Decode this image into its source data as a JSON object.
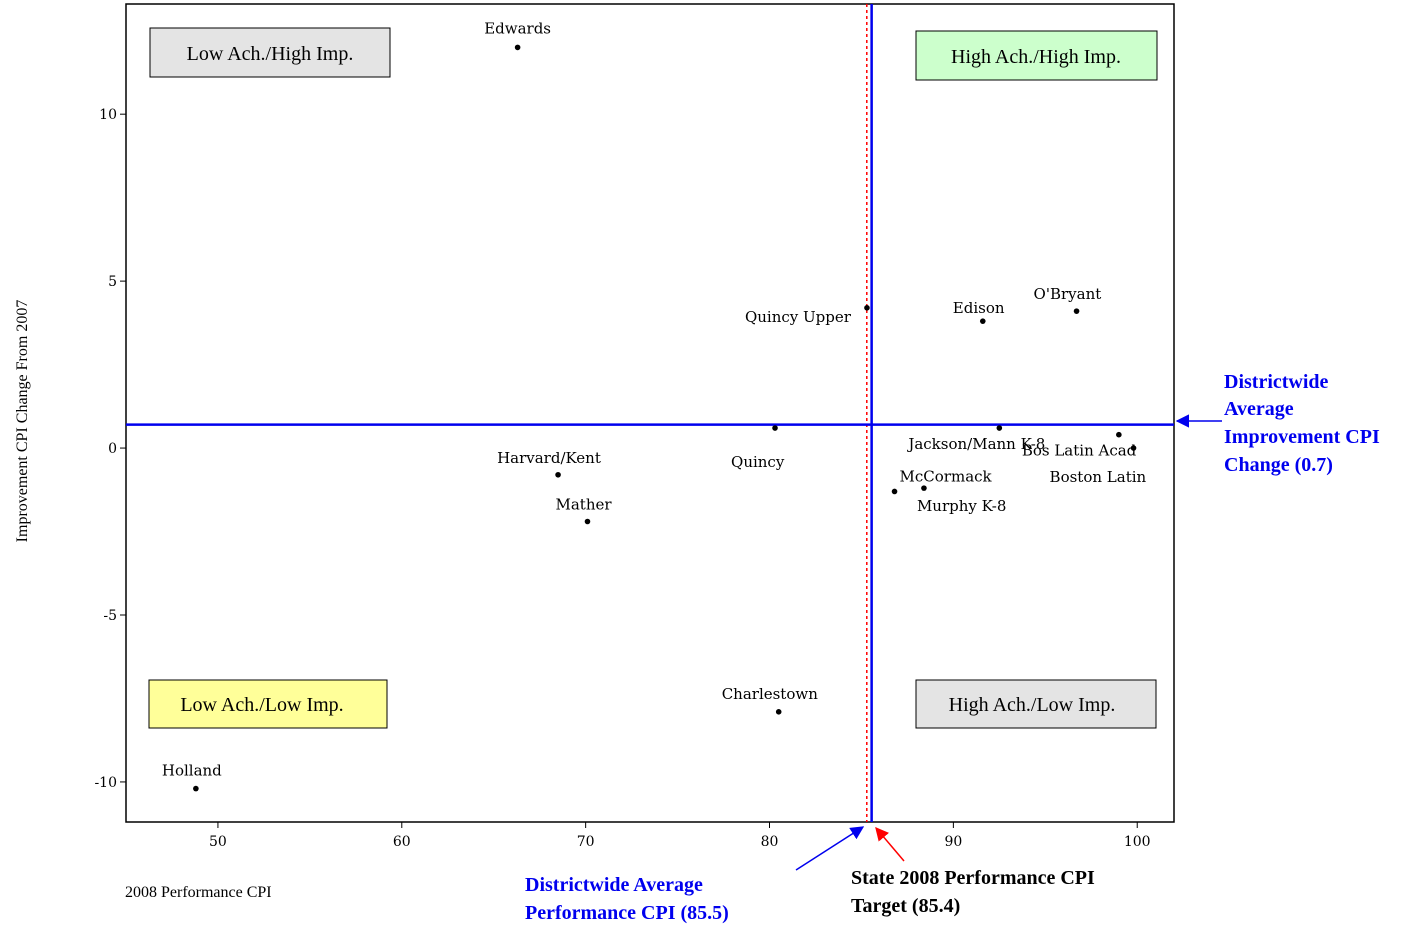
{
  "chart_data": {
    "type": "scatter",
    "xlabel": "2008 Performance CPI",
    "ylabel": "Improvement CPI Change From 2007",
    "xlim": [
      45,
      102
    ],
    "ylim": [
      -11.2,
      13.3
    ],
    "xticks": [
      50,
      60,
      70,
      80,
      90,
      100
    ],
    "yticks": [
      -10,
      -5,
      0,
      5,
      10
    ],
    "grid": false,
    "points": [
      {
        "label": "Edwards",
        "x": 66.3,
        "y": 12.0
      },
      {
        "label": "Quincy Upper",
        "x": 85.3,
        "y": 4.2
      },
      {
        "label": "Edison",
        "x": 91.6,
        "y": 3.8
      },
      {
        "label": "O'Bryant",
        "x": 96.7,
        "y": 4.1
      },
      {
        "label": "Quincy",
        "x": 80.3,
        "y": 0.6
      },
      {
        "label": "Jackson/Mann K-8",
        "x": 92.5,
        "y": 0.6
      },
      {
        "label": "Bos Latin Acad",
        "x": 99.0,
        "y": 0.4
      },
      {
        "label": "Boston Latin",
        "x": 99.8,
        "y": 0.0
      },
      {
        "label": "Harvard/Kent",
        "x": 68.5,
        "y": -0.8
      },
      {
        "label": "McCormack",
        "x": 86.8,
        "y": -1.3
      },
      {
        "label": "Murphy K-8",
        "x": 88.4,
        "y": -1.2
      },
      {
        "label": "Mather",
        "x": 70.1,
        "y": -2.2
      },
      {
        "label": "Charlestown",
        "x": 80.5,
        "y": -7.9
      },
      {
        "label": "Holland",
        "x": 48.8,
        "y": -10.2
      }
    ],
    "reference_lines": {
      "district_avg_performance": 85.5,
      "state_target_performance": 85.4,
      "district_avg_improvement": 0.7
    },
    "quadrant_labels": {
      "top_left": "Low Ach./High Imp.",
      "top_right": "High Ach./High Imp.",
      "bottom_left": "Low Ach./Low Imp.",
      "bottom_right": "High Ach./Low Imp."
    },
    "annotations": {
      "district_improvement": [
        "Districtwide",
        "Average",
        "Improvement CPI",
        "Change (0.7)"
      ],
      "district_performance": [
        "Districtwide Average",
        "Performance CPI (85.5)"
      ],
      "state_target": [
        "State 2008 Performance CPI",
        "Target (85.4)"
      ]
    }
  },
  "colors": {
    "district_line": "#0000ee",
    "state_line": "#ff0000",
    "quad_gray": "#e4e4e4",
    "quad_green": "#ccffcc",
    "quad_yellow": "#ffff99"
  }
}
